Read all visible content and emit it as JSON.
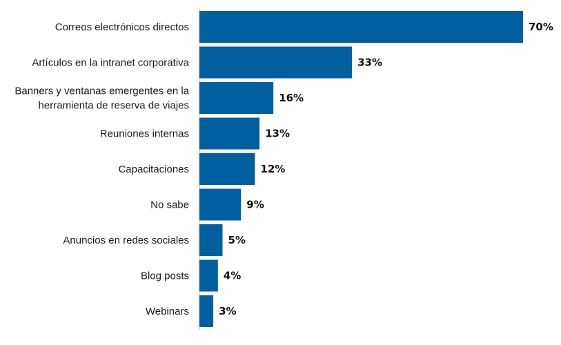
{
  "chart_data": {
    "type": "bar",
    "orientation": "horizontal",
    "categories": [
      [
        "Correos electrónicos directos"
      ],
      [
        "Artículos en la intranet corporativa"
      ],
      [
        "Banners y ventanas emergentes en la",
        "herramienta de reserva de viajes"
      ],
      [
        "Reuniones internas"
      ],
      [
        "Capacitaciones"
      ],
      [
        "No sabe"
      ],
      [
        "Anuncios en redes sociales"
      ],
      [
        "Blog posts"
      ],
      [
        "Webinars"
      ]
    ],
    "values": [
      70,
      33,
      16,
      13,
      12,
      9,
      5,
      4,
      3
    ],
    "value_labels": [
      "70%",
      "33%",
      "16%",
      "13%",
      "12%",
      "9%",
      "5%",
      "4%",
      "3%"
    ],
    "xlim": [
      0,
      70
    ],
    "title": "",
    "xlabel": "",
    "ylabel": "",
    "grid": false,
    "legend": "none",
    "bar_color": "#005f9e"
  }
}
